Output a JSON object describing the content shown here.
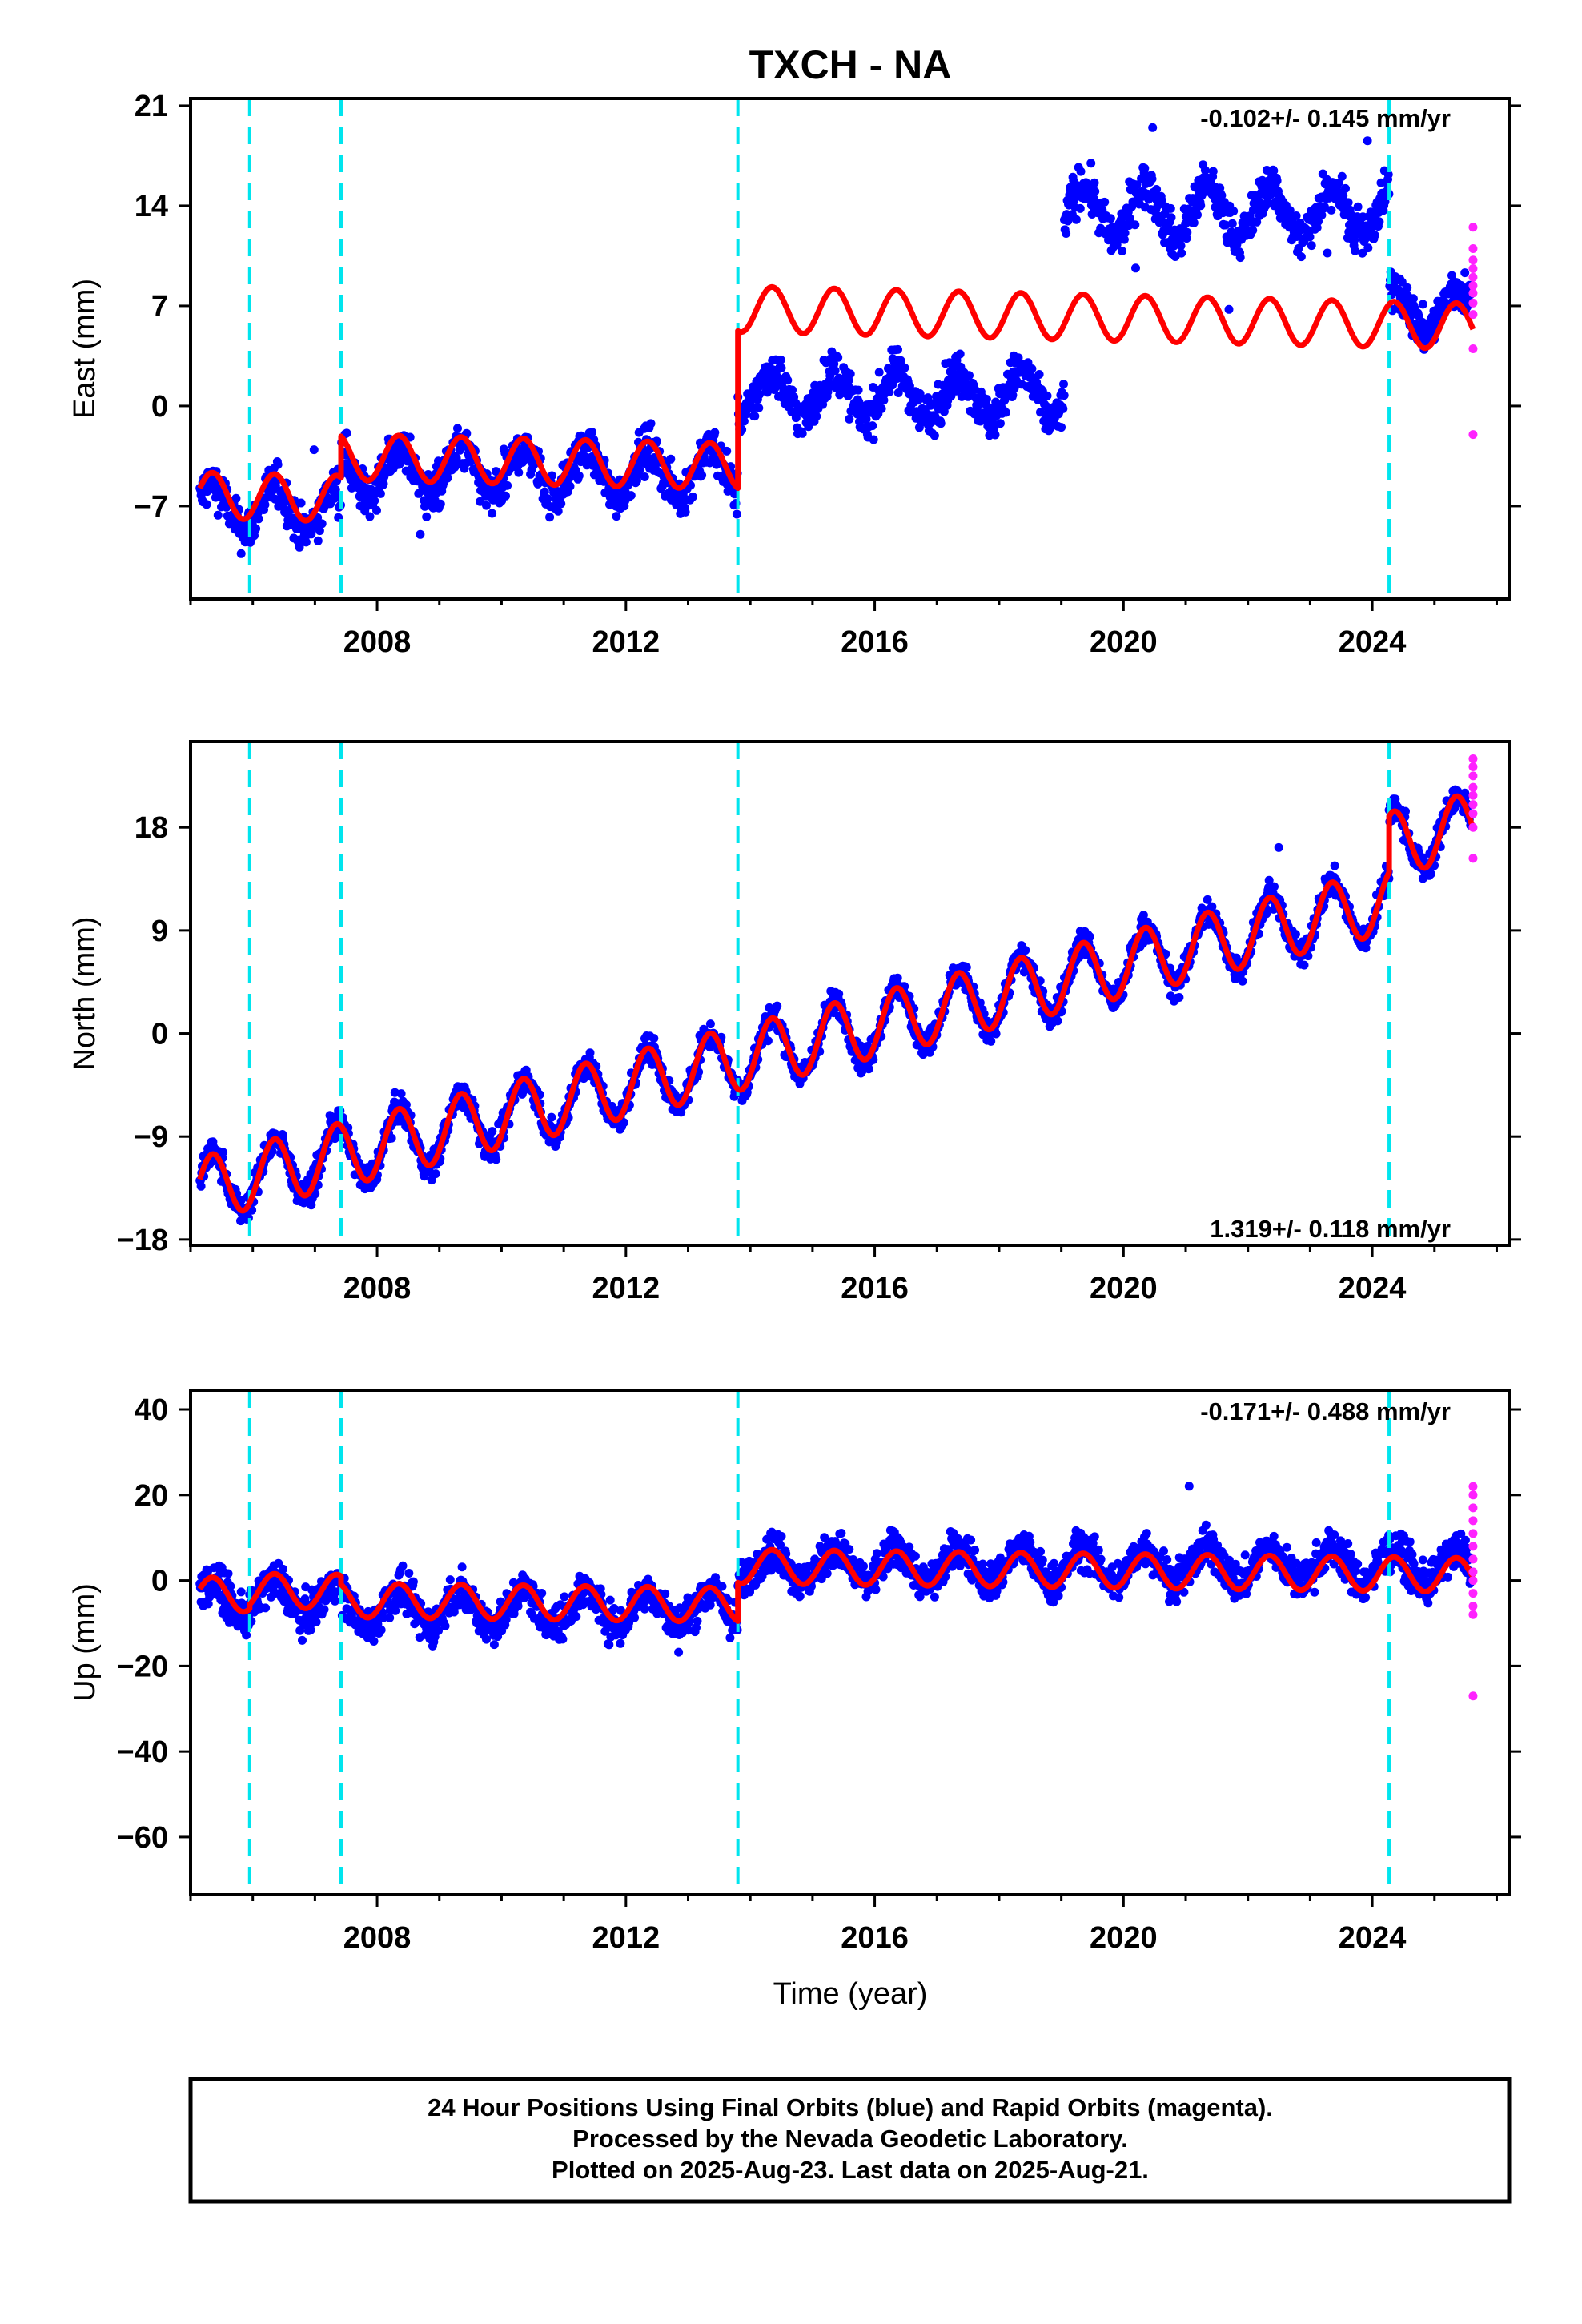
{
  "colors": {
    "final_orbits": "#0000ff",
    "rapid_orbits": "#ff22ff",
    "model": "#ff0000",
    "offsets": "#00e5ee",
    "frame": "#000000"
  },
  "chart_data": [
    {
      "type": "scatter",
      "title": "TXCH - NA",
      "ylabel": "East (mm)",
      "xlabel": "",
      "xlim": [
        2005.0,
        2026.2
      ],
      "ylim": [
        -13.5,
        21.5
      ],
      "yticks": [
        -7,
        0,
        7,
        14,
        21
      ],
      "xticks": [
        2008,
        2012,
        2016,
        2020,
        2024
      ],
      "grid": false,
      "rate_label": "-0.102+/- 0.145 mm/yr",
      "rate_position": "top-right",
      "offsets": [
        2005.95,
        2007.42,
        2013.8,
        2024.27
      ],
      "segments": [
        {
          "start": 2005.15,
          "end": 2005.95,
          "level": -7.0,
          "amp": 1.6,
          "noise": 1.5
        },
        {
          "start": 2005.95,
          "end": 2007.42,
          "level": -7.2,
          "amp": 1.6,
          "noise": 1.5
        },
        {
          "start": 2007.42,
          "end": 2013.8,
          "level": -4.6,
          "amp": 1.6,
          "noise": 1.5
        },
        {
          "start": 2013.8,
          "end": 2019.05,
          "level": 0.8,
          "amp": 1.6,
          "noise": 1.5
        },
        {
          "start": 2019.05,
          "end": 2024.27,
          "level": 13.6,
          "amp": 1.8,
          "noise": 1.5
        },
        {
          "start": 2024.27,
          "end": 2025.58,
          "level": 6.7,
          "amp": 1.5,
          "noise": 1.5
        }
      ],
      "model": {
        "segments": [
          {
            "start": 2005.15,
            "end": 2005.95,
            "level": -7.3
          },
          {
            "start": 2005.95,
            "end": 2007.42,
            "level": -7.3
          },
          {
            "start": 2007.42,
            "end": 2013.8,
            "level": -4.4
          },
          {
            "start": 2013.8,
            "end": 2024.27,
            "level": 6.6
          },
          {
            "start": 2024.27,
            "end": 2025.62,
            "level": 6.6
          }
        ],
        "amp": 1.6,
        "trend": -0.102
      },
      "rapid": {
        "x": 2025.62,
        "values": [
          12.5,
          11.0,
          10.2,
          9.6,
          9.0,
          8.4,
          7.9,
          7.2,
          6.4,
          4.0,
          -2.0
        ]
      }
    },
    {
      "type": "scatter",
      "ylabel": "North (mm)",
      "xlabel": "",
      "xlim": [
        2005.0,
        2026.2
      ],
      "ylim": [
        -18.5,
        25.5
      ],
      "yticks": [
        -18,
        -9,
        0,
        9,
        18
      ],
      "xticks": [
        2008,
        2012,
        2016,
        2020,
        2024
      ],
      "grid": false,
      "rate_label": "1.319+/- 0.118 mm/yr",
      "rate_position": "bottom-right",
      "offsets": [
        2005.95,
        2007.42,
        2013.8,
        2024.27
      ],
      "segments": [
        {
          "start": 2005.15,
          "end": 2024.27,
          "level": -13.6,
          "slope": 1.319,
          "ref": 2005.15,
          "amp": 2.8,
          "noise": 1.2
        },
        {
          "start": 2024.27,
          "end": 2025.58,
          "level": 16.5,
          "slope": 1.319,
          "ref": 2024.27,
          "amp": 2.8,
          "noise": 1.2
        }
      ],
      "model": {
        "segments": [
          {
            "start": 2005.15,
            "end": 2024.27,
            "level": -13.6,
            "slope": 1.319,
            "ref": 2005.15
          },
          {
            "start": 2024.27,
            "end": 2025.62,
            "level": 16.5,
            "slope": 1.319,
            "ref": 2024.27
          }
        ],
        "amp": 2.8
      },
      "rapid": {
        "x": 2025.62,
        "values": [
          24.0,
          23.3,
          22.5,
          21.5,
          20.8,
          20.0,
          19.2,
          18.0,
          15.3
        ]
      }
    },
    {
      "type": "scatter",
      "ylabel": "Up (mm)",
      "xlabel": "Time (year)",
      "xlim": [
        2005.0,
        2026.2
      ],
      "ylim": [
        -73.5,
        44.5
      ],
      "yticks": [
        -60,
        -40,
        -20,
        0,
        20,
        40
      ],
      "xticks": [
        2008,
        2012,
        2016,
        2020,
        2024
      ],
      "grid": false,
      "rate_label": "-0.171+/- 0.488 mm/yr",
      "rate_position": "top-right",
      "offsets": [
        2005.95,
        2007.42,
        2013.8,
        2024.27
      ],
      "segments": [
        {
          "start": 2005.15,
          "end": 2005.95,
          "level": -4.5,
          "amp": 4.0,
          "noise": 4.5
        },
        {
          "start": 2005.95,
          "end": 2007.42,
          "level": -4.0,
          "amp": 4.0,
          "noise": 4.5
        },
        {
          "start": 2007.42,
          "end": 2013.8,
          "level": -6.5,
          "amp": 4.0,
          "noise": 4.5
        },
        {
          "start": 2013.8,
          "end": 2024.27,
          "level": 3.5,
          "amp": 4.0,
          "noise": 4.5
        },
        {
          "start": 2024.27,
          "end": 2025.58,
          "level": 3.0,
          "amp": 4.0,
          "noise": 4.5
        }
      ],
      "model": {
        "segments": [
          {
            "start": 2005.15,
            "end": 2005.95,
            "level": -5.0
          },
          {
            "start": 2005.95,
            "end": 2007.42,
            "level": -4.0
          },
          {
            "start": 2007.42,
            "end": 2013.8,
            "level": -6.0
          },
          {
            "start": 2013.8,
            "end": 2024.27,
            "level": 3.0
          },
          {
            "start": 2024.27,
            "end": 2025.62,
            "level": 3.0
          }
        ],
        "amp": 4.0,
        "trend": -0.171
      },
      "rapid": {
        "x": 2025.62,
        "values": [
          22,
          20,
          17,
          14,
          11,
          8,
          5,
          2,
          0,
          -3,
          -6,
          -8,
          -27
        ]
      }
    }
  ],
  "footer": {
    "line1": "24 Hour Positions Using Final Orbits (blue) and Rapid Orbits (magenta).",
    "line2": "Processed by the Nevada Geodetic Laboratory.",
    "line3": "Plotted on 2025-Aug-23. Last data on 2025-Aug-21."
  }
}
